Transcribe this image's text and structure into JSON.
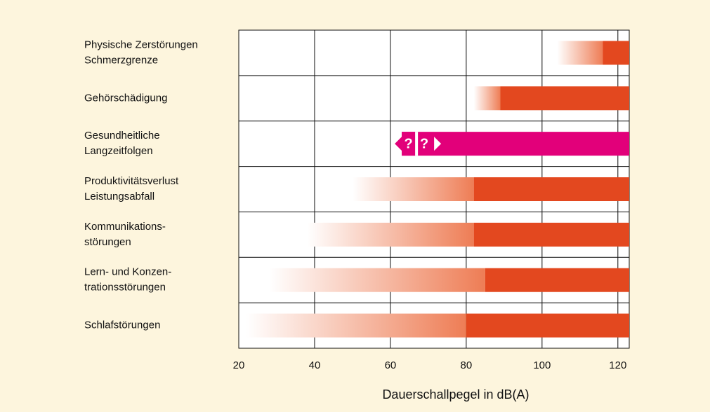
{
  "chart_data": {
    "type": "range-bar",
    "categories": [
      [
        "Physische Zerstörungen",
        "Schmerzgrenze"
      ],
      [
        "Gehörschädigung"
      ],
      [
        "Gesundheitliche",
        "Langzeitfolgen"
      ],
      [
        "Produktivitätsverlust",
        "Leistungsabfall"
      ],
      [
        "Kommunikations-",
        "störungen"
      ],
      [
        "Lern- und Konzen-",
        "trationsstörungen"
      ],
      [
        "Schlafstörungen"
      ]
    ],
    "ranges": [
      {
        "from": 104,
        "full": 116,
        "to": 123,
        "color": "#e3481f"
      },
      {
        "from": 82,
        "full": 89,
        "to": 123,
        "color": "#e3481f"
      },
      {
        "from": 63,
        "full": 63,
        "to": 123,
        "color": "#e2007a"
      },
      {
        "from": 50,
        "full": 82,
        "to": 123,
        "color": "#e3481f"
      },
      {
        "from": 38,
        "full": 82,
        "to": 123,
        "color": "#e3481f"
      },
      {
        "from": 28,
        "full": 85,
        "to": 123,
        "color": "#e3481f"
      },
      {
        "from": 22,
        "full": 80,
        "to": 123,
        "color": "#e3481f"
      }
    ],
    "annotations": [
      "?",
      "?"
    ],
    "xlabel": "Dauerschallpegel in dB(A)",
    "xlim": [
      20,
      123
    ],
    "xticks": [
      20,
      40,
      60,
      80,
      100,
      120
    ],
    "grid": true
  }
}
